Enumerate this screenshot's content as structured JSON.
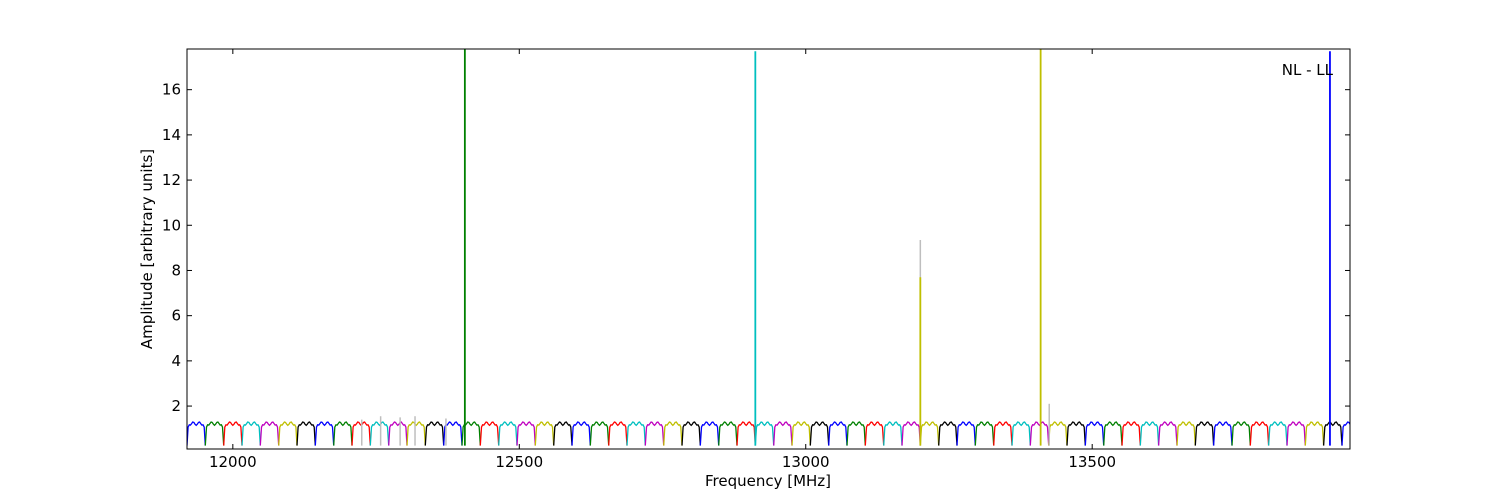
{
  "chart_data": {
    "type": "line",
    "title": "",
    "xlabel": "Frequency [MHz]",
    "ylabel": "Amplitude [arbitrary units]",
    "xlim": [
      11920,
      13950
    ],
    "ylim": [
      0.1,
      17.8
    ],
    "xticks": [
      12000,
      12500,
      13000,
      13500
    ],
    "yticks": [
      2,
      4,
      6,
      8,
      10,
      12,
      14,
      16
    ],
    "grid": false,
    "annotation": "NL - LL",
    "annotation_position": "top-right",
    "band_width_mhz": 16,
    "band_min": 0.25,
    "band_max": 1.3,
    "channel_colors": [
      "#0000ff",
      "#008000",
      "#ff0000",
      "#00bfbf",
      "#bf00bf",
      "#bfbf00",
      "#000000"
    ],
    "series": [
      {
        "color": "#bebebe",
        "points": [
          [
            12225,
            1.4
          ],
          [
            12258,
            1.55
          ],
          [
            12292,
            1.5
          ],
          [
            12318,
            1.55
          ],
          [
            12372,
            1.45
          ],
          [
            13200,
            9.35
          ],
          [
            13425,
            2.1
          ]
        ]
      },
      {
        "color": "#008000",
        "points": [
          [
            12405,
            17.8
          ]
        ]
      },
      {
        "color": "#00bfbf",
        "points": [
          [
            12912,
            17.7
          ]
        ]
      },
      {
        "color": "#bfbf00",
        "points": [
          [
            13200,
            7.7
          ]
        ]
      },
      {
        "color": "#bfbf00",
        "points": [
          [
            13410,
            17.8
          ]
        ]
      },
      {
        "color": "#0000ff",
        "points": [
          [
            13915,
            17.7
          ]
        ]
      }
    ]
  }
}
